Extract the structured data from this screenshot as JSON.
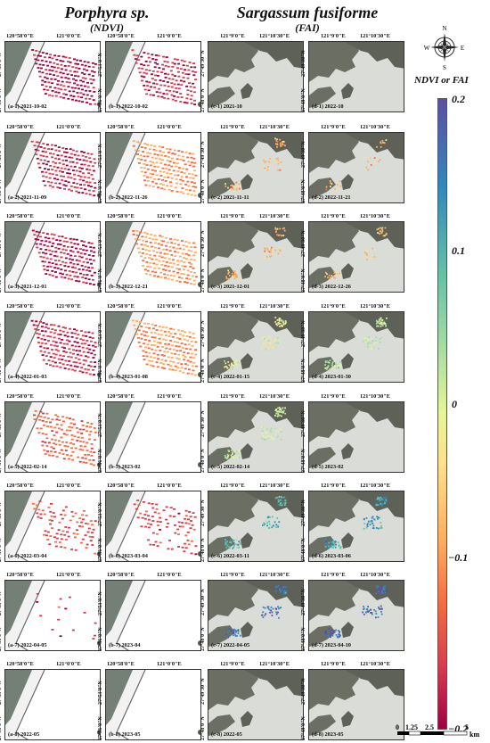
{
  "headers": {
    "porphyra_title": "Porphyra sp.",
    "porphyra_sub": "(NDVI)",
    "sargassum_title": "Sargassum fusiforme",
    "sargassum_sub": "(FAI)"
  },
  "porphyra_ticks": {
    "x1": "120°58'0\"E",
    "x2": "121°0'0\"E",
    "y1": "27°53'0\"N",
    "y2": "27°51'0\"N"
  },
  "sargassum_ticks": {
    "x1": "121°9'0\"E",
    "x2": "121°10'30\"E",
    "y1": "27°49'30\"N",
    "y2": "27°48'0\"N"
  },
  "rows": [
    {
      "a": "(a-1) 2021-10-02",
      "b": "(b-1) 2022-10-02",
      "c": "(c-1) 2021-10",
      "d": "(d-1) 2022-10"
    },
    {
      "a": "(a-2) 2021-11-09",
      "b": "(b-2) 2022-11-26",
      "c": "(c-2) 2021-11-11",
      "d": "(d-2) 2022-11-21"
    },
    {
      "a": "(a-3) 2021-12-01",
      "b": "(b-3) 2022-12-21",
      "c": "(c-3) 2021-12-01",
      "d": "(d-3) 2022-12-26"
    },
    {
      "a": "(a-4) 2022-01-03",
      "b": "(b-4) 2023-01-08",
      "c": "(c-4) 2022-01-15",
      "d": "(d-4) 2023-01-30"
    },
    {
      "a": "(a-5) 2022-02-14",
      "b": "(b-5) 2023-02",
      "c": "(c-5) 2022-02-14",
      "d": "(d-5) 2023-02"
    },
    {
      "a": "(a-6) 2022-03-04",
      "b": "(b-6) 2023-03-04",
      "c": "(c-6) 2022-03-11",
      "d": "(d-6) 2023-03-06"
    },
    {
      "a": "(a-7) 2022-04-05",
      "b": "(b-7) 2023-04",
      "c": "(c-7) 2022-04-05",
      "d": "(d-7) 2023-04-10"
    },
    {
      "a": "(a-8) 2022-05",
      "b": "(b-8) 2023-05",
      "c": "(c-8) 2022-05",
      "d": "(d-8) 2023-05"
    }
  ],
  "colorbar": {
    "title": "NDVI or FAI",
    "max": "0.2",
    "t1": "0.1",
    "mid": "0",
    "t3": "−0.1",
    "min": "−0.2",
    "colors": [
      "#5e4fa2",
      "#3288bd",
      "#66c2a5",
      "#abdda4",
      "#e6f598",
      "#fee08b",
      "#fdae61",
      "#f46d43",
      "#d53e4f",
      "#9e0142"
    ]
  },
  "compass": {
    "n": "N",
    "e": "E",
    "s": "S",
    "w": "W"
  },
  "scalebar": {
    "l0": "0",
    "l1": "1.25",
    "l2": "2.5",
    "l3": "5",
    "unit": "km"
  }
}
